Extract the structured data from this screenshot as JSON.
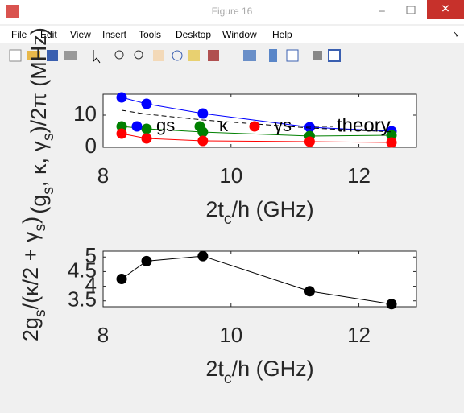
{
  "window": {
    "title": "Figure 16",
    "menu": [
      "File",
      "Edit",
      "View",
      "Insert",
      "Tools",
      "Desktop",
      "Window",
      "Help"
    ]
  },
  "chart_data": [
    {
      "type": "line",
      "xlabel": [
        "2t",
        "c",
        "/h (GHz)"
      ],
      "ylabel": [
        "(g",
        "s",
        ", κ, γ",
        "s",
        ")/2π (MHz)"
      ],
      "xlim": [
        8,
        12.9
      ],
      "xticks": [
        8,
        10,
        12
      ],
      "ylim": [
        0,
        16.5
      ],
      "yticks": [
        0,
        10
      ],
      "x": [
        8.29,
        8.68,
        9.56,
        11.23,
        12.51
      ],
      "series": [
        {
          "name": "gs",
          "color": "#0000ff",
          "marker": true,
          "style": "solid",
          "values": [
            15.5,
            13.5,
            10.5,
            6.25,
            5.0
          ]
        },
        {
          "name": "κ",
          "color": "#008000",
          "marker": true,
          "style": "solid",
          "values": [
            6.5,
            5.75,
            4.75,
            3.5,
            3.75
          ]
        },
        {
          "name": "γs",
          "color": "#ff0000",
          "marker": true,
          "style": "solid",
          "values": [
            4.25,
            2.75,
            2.0,
            1.75,
            1.5
          ]
        },
        {
          "name": "theory",
          "color": "#000000",
          "marker": false,
          "style": "dashed",
          "values": [
            11.5,
            10.3,
            8.5,
            6.0,
            4.8
          ]
        }
      ],
      "legend": true
    },
    {
      "type": "line",
      "xlabel": [
        "2t",
        "c",
        "/h (GHz)"
      ],
      "ylabel": [
        "2g",
        "s",
        "/(κ/2 + γ",
        "s",
        ")"
      ],
      "xlim": [
        8,
        12.9
      ],
      "xticks": [
        8,
        10,
        12
      ],
      "ylim": [
        3.3,
        5.2
      ],
      "yticks": [
        3.5,
        4,
        4.5,
        5
      ],
      "x": [
        8.29,
        8.68,
        9.56,
        11.23,
        12.51
      ],
      "series": [
        {
          "color": "#000000",
          "marker": true,
          "style": "solid",
          "values": [
            4.25,
            4.86,
            5.03,
            3.83,
            3.39
          ]
        }
      ],
      "legend": false
    }
  ]
}
